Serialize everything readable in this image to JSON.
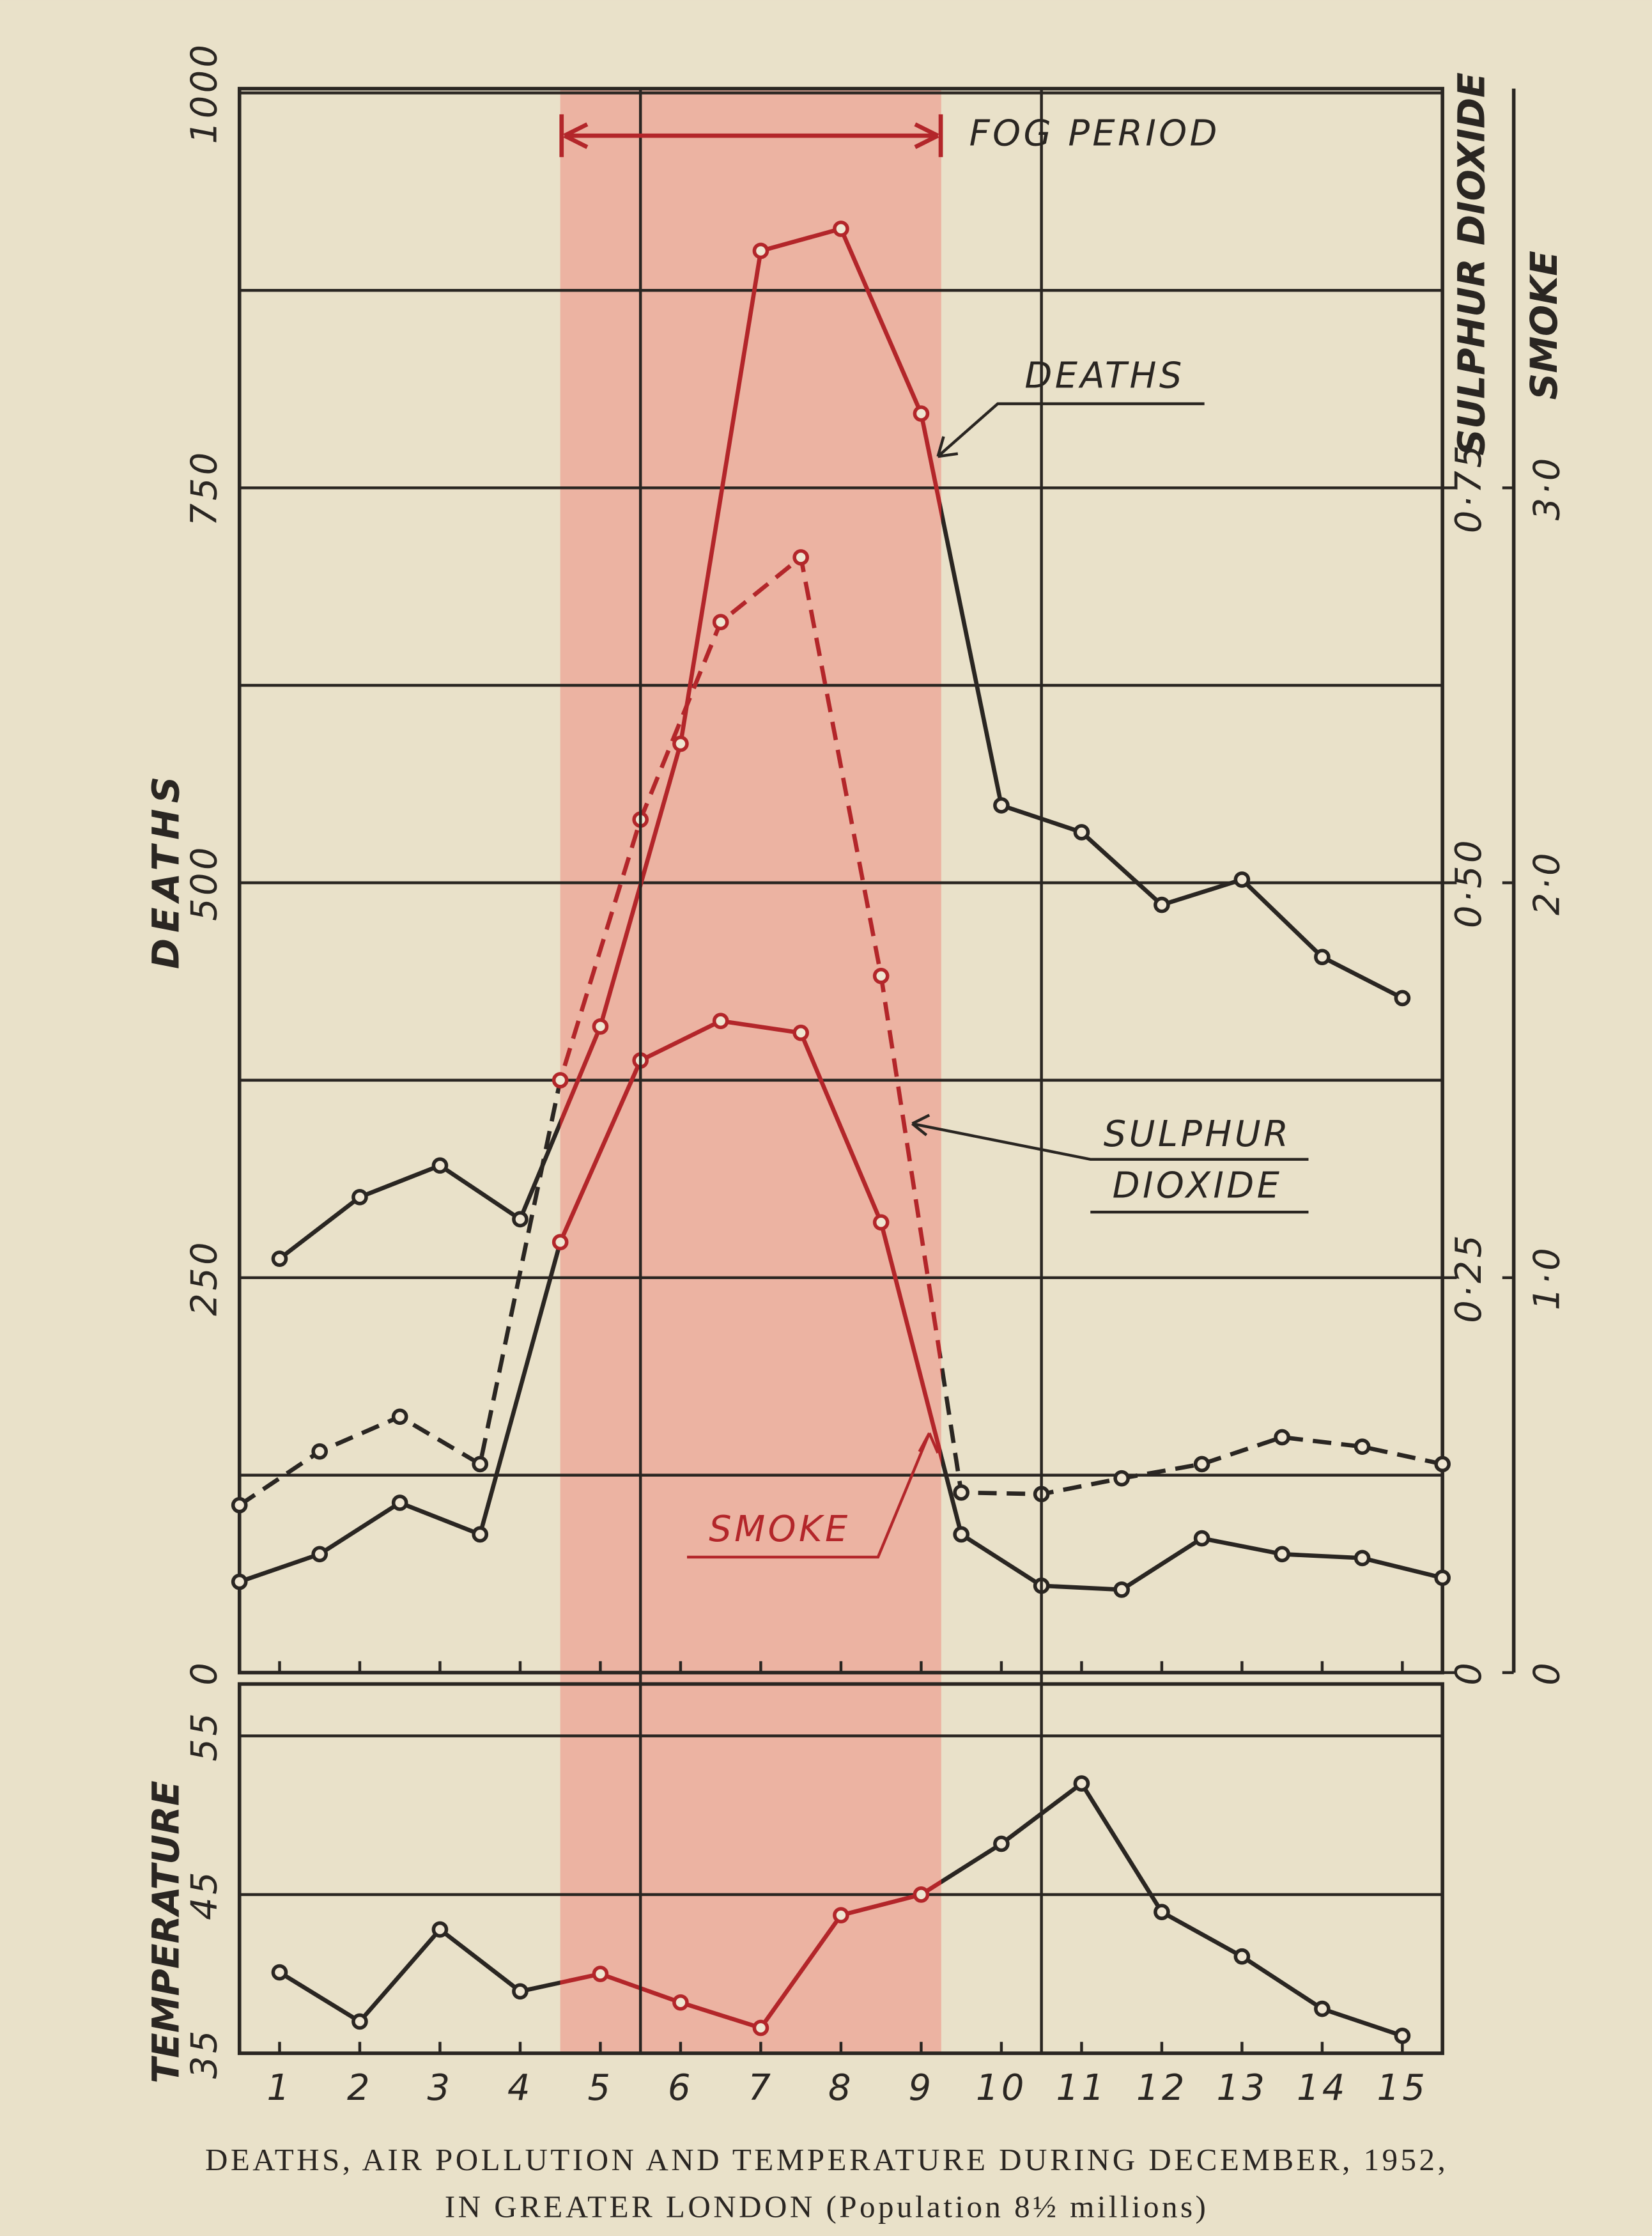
{
  "caption": [
    "DEATHS, AIR POLLUTION AND TEMPERATURE DURING DECEMBER, 1952,",
    "IN GREATER LONDON (Population 8½ millions)"
  ],
  "chart_data": [
    {
      "type": "line",
      "ylabel": "DEATHS",
      "y2label": "SULPHUR DIOXIDE",
      "y3label": "SMOKE",
      "xlim": [
        0.5,
        15.5
      ],
      "ylim": [
        0,
        1000
      ],
      "y2lim": [
        0,
        1.0
      ],
      "y3lim": [
        0,
        4.0
      ],
      "yticks": [
        0,
        250,
        500,
        750,
        1000
      ],
      "minor_yticks": [
        125,
        375,
        625,
        875
      ],
      "y2ticks": [
        0,
        {
          "value": 0.25,
          "label": "0·25"
        },
        {
          "value": 0.5,
          "label": "0·50"
        },
        {
          "value": 0.75,
          "label": "0·75"
        }
      ],
      "y3ticks": [
        0,
        {
          "value": 1,
          "label": "1·0"
        },
        {
          "value": 2,
          "label": "2·0"
        },
        {
          "value": 3,
          "label": "3·0"
        }
      ],
      "xgrid": [
        5.5,
        10.5
      ],
      "fog_period": [
        4.5,
        9.25
      ],
      "color": "#2a2622",
      "fog_color": "#b3262a",
      "shade_color": "#ecb3a2",
      "annotations": [
        "FOG PERIOD",
        "DEATHS",
        [
          "SULPHUR",
          "DIOXIDE"
        ],
        "SMOKE"
      ],
      "series": [
        {
          "name": "DEATHS",
          "axis": "y",
          "dash": false,
          "x": [
            1,
            2,
            3,
            4,
            5,
            6,
            7,
            8,
            9,
            10,
            11,
            12,
            13,
            14,
            15
          ],
          "values": [
            262,
            301,
            321,
            287,
            409,
            588,
            900,
            914,
            797,
            549,
            532,
            486,
            502,
            453,
            427
          ]
        },
        {
          "name": "SULPHUR DIOXIDE",
          "axis": "y2",
          "dash": true,
          "x": [
            0.5,
            1.5,
            2.5,
            3.5,
            4.5,
            5.5,
            6.5,
            7.5,
            8.5,
            9.5,
            10.5,
            11.5,
            12.5,
            13.5,
            14.5,
            15.5
          ],
          "values": [
            0.106,
            0.14,
            0.162,
            0.132,
            0.375,
            0.54,
            0.665,
            0.706,
            0.441,
            0.114,
            0.113,
            0.123,
            0.132,
            0.149,
            0.143,
            0.132
          ]
        },
        {
          "name": "SMOKE",
          "axis": "y3",
          "dash": false,
          "x": [
            0.5,
            1.5,
            2.5,
            3.5,
            4.5,
            5.5,
            6.5,
            7.5,
            8.5,
            9.5,
            10.5,
            11.5,
            12.5,
            13.5,
            14.5,
            15.5
          ],
          "values": [
            0.23,
            0.3,
            0.43,
            0.35,
            1.09,
            1.55,
            1.65,
            1.62,
            1.14,
            0.35,
            0.22,
            0.21,
            0.34,
            0.3,
            0.29,
            0.24
          ]
        }
      ]
    },
    {
      "type": "line",
      "ylabel": "TEMPERATURE",
      "xlim": [
        0.5,
        15.5
      ],
      "ylim": [
        35,
        58
      ],
      "yticks": [
        35,
        45,
        55
      ],
      "xticks": [
        1,
        2,
        3,
        4,
        5,
        6,
        7,
        8,
        9,
        10,
        11,
        12,
        13,
        14,
        15
      ],
      "series": [
        {
          "name": "TEMPERATURE",
          "axis": "y",
          "dash": false,
          "x": [
            1,
            2,
            3,
            4,
            5,
            6,
            7,
            8,
            9,
            10,
            11,
            12,
            13,
            14,
            15
          ],
          "values": [
            40.1,
            37.0,
            42.8,
            38.9,
            40.0,
            38.2,
            36.6,
            43.7,
            45.0,
            48.2,
            52.0,
            43.9,
            41.1,
            37.8,
            36.1
          ]
        }
      ]
    }
  ]
}
